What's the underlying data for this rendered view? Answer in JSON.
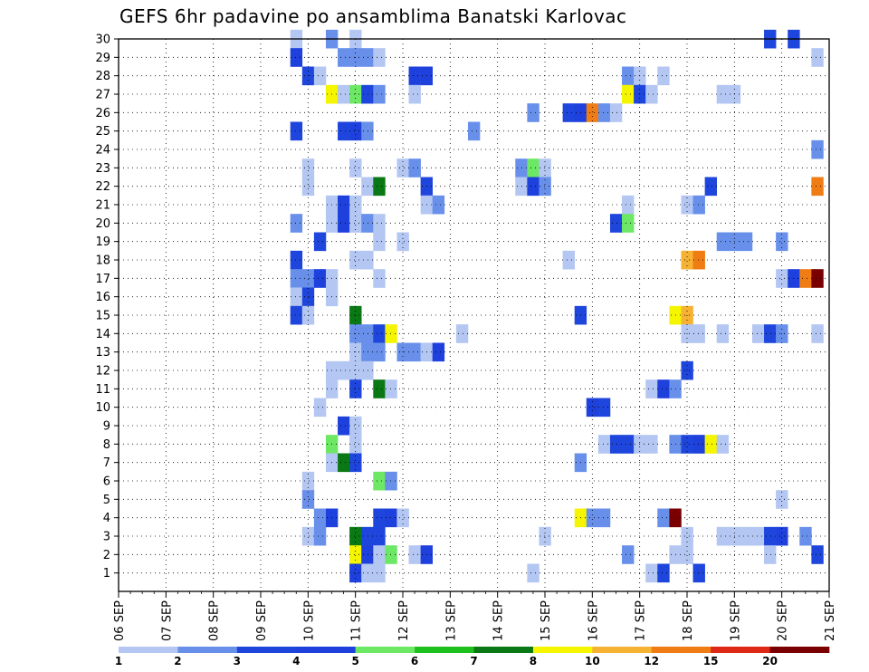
{
  "chart_data": {
    "type": "heatmap",
    "title": "GEFS 6hr padavine po ansamblima Banatski Karlovac",
    "x_tick_labels": [
      "06 SEP",
      "07 SEP",
      "08 SEP",
      "09 SEP",
      "10 SEP",
      "11 SEP",
      "12 SEP",
      "13 SEP",
      "14 SEP",
      "15 SEP",
      "16 SEP",
      "17 SEP",
      "18 SEP",
      "19 SEP",
      "20 SEP",
      "21 SEP"
    ],
    "y_tick_labels": [
      "1",
      "2",
      "3",
      "4",
      "5",
      "6",
      "7",
      "8",
      "9",
      "10",
      "11",
      "12",
      "13",
      "14",
      "15",
      "16",
      "17",
      "18",
      "19",
      "20",
      "21",
      "22",
      "23",
      "24",
      "25",
      "26",
      "27",
      "28",
      "29",
      "30"
    ],
    "x_range": [
      0,
      60
    ],
    "y_range": [
      0,
      30
    ],
    "legend": {
      "position": "bottom",
      "labels": [
        "1",
        "2",
        "3",
        "4",
        "5",
        "6",
        "7",
        "8",
        "10",
        "12",
        "15",
        "20"
      ],
      "colors": [
        "#b4c6f2",
        "#6890ea",
        "#1e46dc",
        "#1e40dc",
        "#6ce864",
        "#1ec01e",
        "#0a7814",
        "#f5f500",
        "#f6b232",
        "#ef7d14",
        "#dc2814",
        "#7a0000"
      ]
    },
    "cells": [
      {
        "x": 15,
        "y": 30,
        "v": 1
      },
      {
        "x": 18,
        "y": 30,
        "v": 2
      },
      {
        "x": 20,
        "y": 30,
        "v": 1
      },
      {
        "x": 55,
        "y": 30,
        "v": 3
      },
      {
        "x": 57,
        "y": 30,
        "v": 3
      },
      {
        "x": 15,
        "y": 29,
        "v": 4.5
      },
      {
        "x": 19,
        "y": 29,
        "v": 2
      },
      {
        "x": 20,
        "y": 29,
        "v": 2
      },
      {
        "x": 21,
        "y": 29,
        "v": 2
      },
      {
        "x": 22,
        "y": 29,
        "v": 1
      },
      {
        "x": 59,
        "y": 29,
        "v": 1
      },
      {
        "x": 16,
        "y": 28,
        "v": 3
      },
      {
        "x": 17,
        "y": 28,
        "v": 1
      },
      {
        "x": 25,
        "y": 28,
        "v": 4.5
      },
      {
        "x": 26,
        "y": 28,
        "v": 4.5
      },
      {
        "x": 43,
        "y": 28,
        "v": 2
      },
      {
        "x": 44,
        "y": 28,
        "v": 1
      },
      {
        "x": 46,
        "y": 28,
        "v": 1
      },
      {
        "x": 18,
        "y": 27,
        "v": 9
      },
      {
        "x": 19,
        "y": 27,
        "v": 1
      },
      {
        "x": 20,
        "y": 27,
        "v": 5
      },
      {
        "x": 21,
        "y": 27,
        "v": 3
      },
      {
        "x": 22,
        "y": 27,
        "v": 2
      },
      {
        "x": 25,
        "y": 27,
        "v": 1
      },
      {
        "x": 43,
        "y": 27,
        "v": 8
      },
      {
        "x": 44,
        "y": 27,
        "v": 3
      },
      {
        "x": 45,
        "y": 27,
        "v": 1
      },
      {
        "x": 51,
        "y": 27,
        "v": 1
      },
      {
        "x": 52,
        "y": 27,
        "v": 1
      },
      {
        "x": 35,
        "y": 26,
        "v": 2
      },
      {
        "x": 38,
        "y": 26,
        "v": 3
      },
      {
        "x": 39,
        "y": 26,
        "v": 4.5
      },
      {
        "x": 40,
        "y": 26,
        "v": 12
      },
      {
        "x": 41,
        "y": 26,
        "v": 2
      },
      {
        "x": 42,
        "y": 26,
        "v": 1
      },
      {
        "x": 15,
        "y": 25,
        "v": 3
      },
      {
        "x": 19,
        "y": 25,
        "v": 3
      },
      {
        "x": 20,
        "y": 25,
        "v": 4.5
      },
      {
        "x": 21,
        "y": 25,
        "v": 2
      },
      {
        "x": 30,
        "y": 25,
        "v": 2
      },
      {
        "x": 59,
        "y": 24,
        "v": 2
      },
      {
        "x": 16,
        "y": 23,
        "v": 1
      },
      {
        "x": 20,
        "y": 23,
        "v": 1
      },
      {
        "x": 24,
        "y": 23,
        "v": 1
      },
      {
        "x": 25,
        "y": 23,
        "v": 2
      },
      {
        "x": 34,
        "y": 23,
        "v": 2
      },
      {
        "x": 35,
        "y": 23,
        "v": 5
      },
      {
        "x": 36,
        "y": 23,
        "v": 1
      },
      {
        "x": 16,
        "y": 22,
        "v": 1
      },
      {
        "x": 21,
        "y": 22,
        "v": 1
      },
      {
        "x": 22,
        "y": 22,
        "v": 7
      },
      {
        "x": 26,
        "y": 22,
        "v": 3
      },
      {
        "x": 34,
        "y": 22,
        "v": 1
      },
      {
        "x": 35,
        "y": 22,
        "v": 4.5
      },
      {
        "x": 36,
        "y": 22,
        "v": 2
      },
      {
        "x": 50,
        "y": 22,
        "v": 3
      },
      {
        "x": 59,
        "y": 22,
        "v": 12
      },
      {
        "x": 18,
        "y": 21,
        "v": 1
      },
      {
        "x": 19,
        "y": 21,
        "v": 4.5
      },
      {
        "x": 20,
        "y": 21,
        "v": 1
      },
      {
        "x": 26,
        "y": 21,
        "v": 1
      },
      {
        "x": 27,
        "y": 21,
        "v": 2
      },
      {
        "x": 43,
        "y": 21,
        "v": 1
      },
      {
        "x": 48,
        "y": 21,
        "v": 1
      },
      {
        "x": 49,
        "y": 21,
        "v": 2
      },
      {
        "x": 15,
        "y": 20,
        "v": 2
      },
      {
        "x": 18,
        "y": 20,
        "v": 1
      },
      {
        "x": 19,
        "y": 20,
        "v": 4.5
      },
      {
        "x": 20,
        "y": 20,
        "v": 1
      },
      {
        "x": 21,
        "y": 20,
        "v": 2
      },
      {
        "x": 22,
        "y": 20,
        "v": 1
      },
      {
        "x": 42,
        "y": 20,
        "v": 3
      },
      {
        "x": 43,
        "y": 20,
        "v": 5
      },
      {
        "x": 17,
        "y": 19,
        "v": 3
      },
      {
        "x": 22,
        "y": 19,
        "v": 1
      },
      {
        "x": 24,
        "y": 19,
        "v": 1
      },
      {
        "x": 51,
        "y": 19,
        "v": 2
      },
      {
        "x": 52,
        "y": 19,
        "v": 2
      },
      {
        "x": 53,
        "y": 19,
        "v": 2
      },
      {
        "x": 56,
        "y": 19,
        "v": 2
      },
      {
        "x": 15,
        "y": 18,
        "v": 3
      },
      {
        "x": 20,
        "y": 18,
        "v": 1
      },
      {
        "x": 21,
        "y": 18,
        "v": 1
      },
      {
        "x": 38,
        "y": 18,
        "v": 1
      },
      {
        "x": 48,
        "y": 18,
        "v": 10
      },
      {
        "x": 49,
        "y": 18,
        "v": 12
      },
      {
        "x": 15,
        "y": 17,
        "v": 2
      },
      {
        "x": 16,
        "y": 17,
        "v": 2
      },
      {
        "x": 17,
        "y": 17,
        "v": 4.5
      },
      {
        "x": 18,
        "y": 17,
        "v": 1
      },
      {
        "x": 22,
        "y": 17,
        "v": 1
      },
      {
        "x": 56,
        "y": 17,
        "v": 1
      },
      {
        "x": 57,
        "y": 17,
        "v": 4.5
      },
      {
        "x": 58,
        "y": 17,
        "v": 12
      },
      {
        "x": 59,
        "y": 17,
        "v": 20
      },
      {
        "x": 15,
        "y": 16,
        "v": 1
      },
      {
        "x": 16,
        "y": 16,
        "v": 3
      },
      {
        "x": 18,
        "y": 16,
        "v": 1
      },
      {
        "x": 15,
        "y": 15,
        "v": 3
      },
      {
        "x": 16,
        "y": 15,
        "v": 1
      },
      {
        "x": 20,
        "y": 15,
        "v": 7
      },
      {
        "x": 39,
        "y": 15,
        "v": 3
      },
      {
        "x": 47,
        "y": 15,
        "v": 8
      },
      {
        "x": 48,
        "y": 15,
        "v": 10
      },
      {
        "x": 20,
        "y": 14,
        "v": 2
      },
      {
        "x": 21,
        "y": 14,
        "v": 2
      },
      {
        "x": 22,
        "y": 14,
        "v": 3
      },
      {
        "x": 23,
        "y": 14,
        "v": 8
      },
      {
        "x": 29,
        "y": 14,
        "v": 1
      },
      {
        "x": 48,
        "y": 14,
        "v": 1
      },
      {
        "x": 49,
        "y": 14,
        "v": 1
      },
      {
        "x": 51,
        "y": 14,
        "v": 1
      },
      {
        "x": 54,
        "y": 14,
        "v": 1
      },
      {
        "x": 55,
        "y": 14,
        "v": 3
      },
      {
        "x": 56,
        "y": 14,
        "v": 2
      },
      {
        "x": 59,
        "y": 14,
        "v": 1
      },
      {
        "x": 20,
        "y": 13,
        "v": 1
      },
      {
        "x": 21,
        "y": 13,
        "v": 2
      },
      {
        "x": 22,
        "y": 13,
        "v": 2
      },
      {
        "x": 24,
        "y": 13,
        "v": 2
      },
      {
        "x": 25,
        "y": 13,
        "v": 2
      },
      {
        "x": 26,
        "y": 13,
        "v": 1
      },
      {
        "x": 27,
        "y": 13,
        "v": 4.5
      },
      {
        "x": 18,
        "y": 12,
        "v": 1
      },
      {
        "x": 19,
        "y": 12,
        "v": 1
      },
      {
        "x": 20,
        "y": 12,
        "v": 1
      },
      {
        "x": 21,
        "y": 12,
        "v": 1
      },
      {
        "x": 48,
        "y": 12,
        "v": 3
      },
      {
        "x": 18,
        "y": 11,
        "v": 1
      },
      {
        "x": 20,
        "y": 11,
        "v": 3
      },
      {
        "x": 22,
        "y": 11,
        "v": 7
      },
      {
        "x": 23,
        "y": 11,
        "v": 1
      },
      {
        "x": 45,
        "y": 11,
        "v": 1
      },
      {
        "x": 46,
        "y": 11,
        "v": 4.5
      },
      {
        "x": 47,
        "y": 11,
        "v": 2
      },
      {
        "x": 17,
        "y": 10,
        "v": 1
      },
      {
        "x": 40,
        "y": 10,
        "v": 4.5
      },
      {
        "x": 41,
        "y": 10,
        "v": 3
      },
      {
        "x": 19,
        "y": 9,
        "v": 4.5
      },
      {
        "x": 20,
        "y": 9,
        "v": 1
      },
      {
        "x": 18,
        "y": 8,
        "v": 5
      },
      {
        "x": 20,
        "y": 8,
        "v": 1
      },
      {
        "x": 41,
        "y": 8,
        "v": 1
      },
      {
        "x": 42,
        "y": 8,
        "v": 3
      },
      {
        "x": 43,
        "y": 8,
        "v": 3
      },
      {
        "x": 44,
        "y": 8,
        "v": 1
      },
      {
        "x": 45,
        "y": 8,
        "v": 1
      },
      {
        "x": 47,
        "y": 8,
        "v": 2
      },
      {
        "x": 48,
        "y": 8,
        "v": 3
      },
      {
        "x": 49,
        "y": 8,
        "v": 4.5
      },
      {
        "x": 50,
        "y": 8,
        "v": 8
      },
      {
        "x": 51,
        "y": 8,
        "v": 1
      },
      {
        "x": 18,
        "y": 7,
        "v": 1
      },
      {
        "x": 19,
        "y": 7,
        "v": 7
      },
      {
        "x": 20,
        "y": 7,
        "v": 3
      },
      {
        "x": 39,
        "y": 7,
        "v": 2
      },
      {
        "x": 16,
        "y": 6,
        "v": 1
      },
      {
        "x": 22,
        "y": 6,
        "v": 5
      },
      {
        "x": 23,
        "y": 6,
        "v": 2
      },
      {
        "x": 16,
        "y": 5,
        "v": 2
      },
      {
        "x": 56,
        "y": 5,
        "v": 1
      },
      {
        "x": 17,
        "y": 4,
        "v": 2
      },
      {
        "x": 18,
        "y": 4,
        "v": 4.5
      },
      {
        "x": 22,
        "y": 4,
        "v": 3
      },
      {
        "x": 23,
        "y": 4,
        "v": 4.5
      },
      {
        "x": 24,
        "y": 4,
        "v": 1
      },
      {
        "x": 39,
        "y": 4,
        "v": 8
      },
      {
        "x": 40,
        "y": 4,
        "v": 2
      },
      {
        "x": 41,
        "y": 4,
        "v": 2
      },
      {
        "x": 46,
        "y": 4,
        "v": 2
      },
      {
        "x": 47,
        "y": 4,
        "v": 20
      },
      {
        "x": 16,
        "y": 3,
        "v": 1
      },
      {
        "x": 17,
        "y": 3,
        "v": 2
      },
      {
        "x": 20,
        "y": 3,
        "v": 7
      },
      {
        "x": 21,
        "y": 3,
        "v": 3
      },
      {
        "x": 22,
        "y": 3,
        "v": 3
      },
      {
        "x": 36,
        "y": 3,
        "v": 1
      },
      {
        "x": 48,
        "y": 3,
        "v": 1
      },
      {
        "x": 51,
        "y": 3,
        "v": 1
      },
      {
        "x": 52,
        "y": 3,
        "v": 1
      },
      {
        "x": 53,
        "y": 3,
        "v": 1
      },
      {
        "x": 54,
        "y": 3,
        "v": 1
      },
      {
        "x": 55,
        "y": 3,
        "v": 3
      },
      {
        "x": 56,
        "y": 3,
        "v": 4.5
      },
      {
        "x": 58,
        "y": 3,
        "v": 2
      },
      {
        "x": 20,
        "y": 2,
        "v": 8
      },
      {
        "x": 21,
        "y": 2,
        "v": 4.5
      },
      {
        "x": 22,
        "y": 2,
        "v": 1
      },
      {
        "x": 23,
        "y": 2,
        "v": 5
      },
      {
        "x": 25,
        "y": 2,
        "v": 1
      },
      {
        "x": 26,
        "y": 2,
        "v": 4.5
      },
      {
        "x": 43,
        "y": 2,
        "v": 2
      },
      {
        "x": 47,
        "y": 2,
        "v": 1
      },
      {
        "x": 48,
        "y": 2,
        "v": 1
      },
      {
        "x": 55,
        "y": 2,
        "v": 1
      },
      {
        "x": 59,
        "y": 2,
        "v": 3
      },
      {
        "x": 20,
        "y": 1,
        "v": 4.5
      },
      {
        "x": 21,
        "y": 1,
        "v": 1
      },
      {
        "x": 22,
        "y": 1,
        "v": 1
      },
      {
        "x": 35,
        "y": 1,
        "v": 1
      },
      {
        "x": 45,
        "y": 1,
        "v": 1
      },
      {
        "x": 46,
        "y": 1,
        "v": 3
      },
      {
        "x": 49,
        "y": 1,
        "v": 3
      }
    ]
  }
}
